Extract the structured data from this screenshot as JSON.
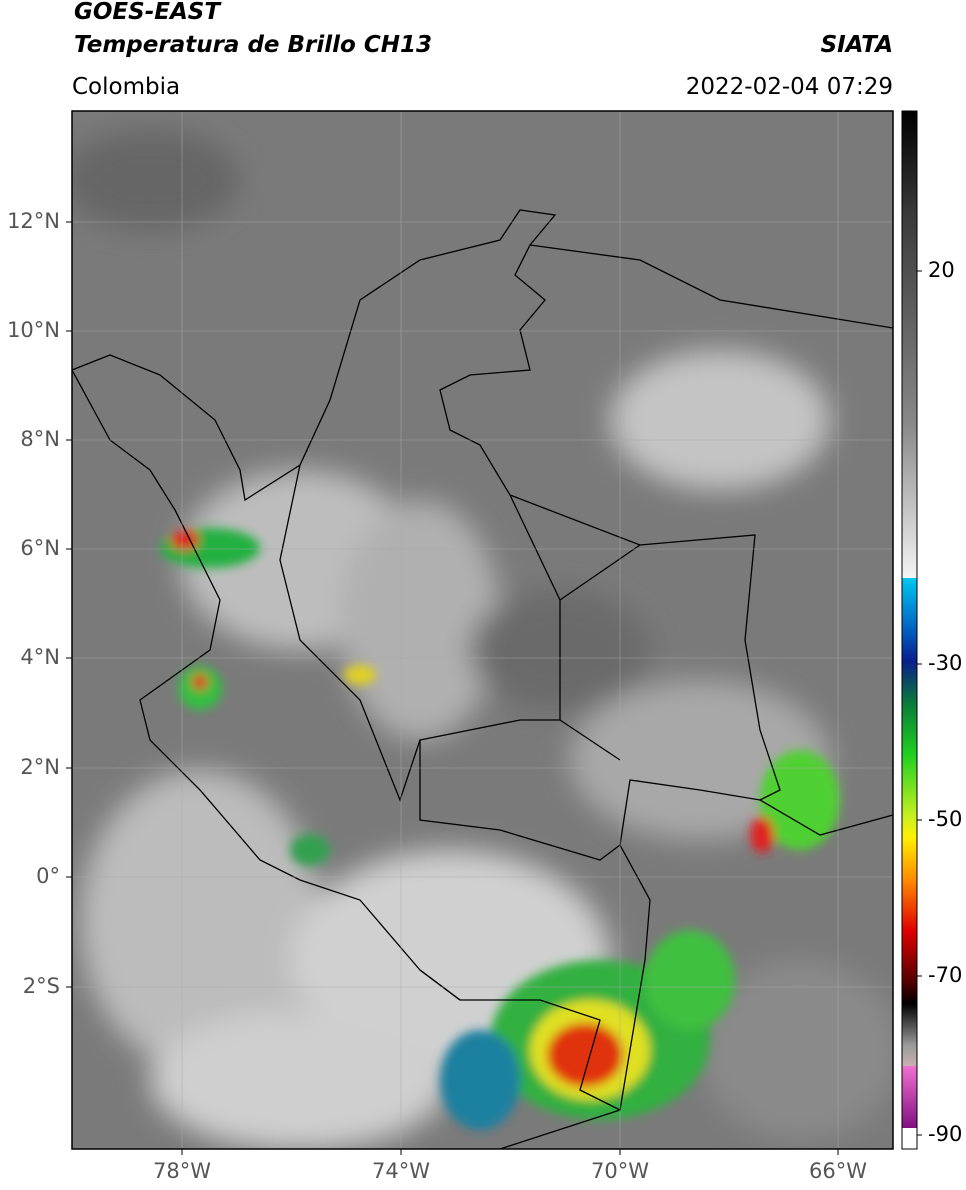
{
  "header": {
    "title_line1": "GOES-EAST",
    "title_line2": "Temperatura de Brillo CH13",
    "region": "Colombia",
    "source": "SIATA",
    "datetime": "2022-02-04 07:29"
  },
  "map": {
    "lat_ticks": [
      "12°N",
      "10°N",
      "8°N",
      "6°N",
      "4°N",
      "2°N",
      "0°",
      "2°S"
    ],
    "lon_ticks": [
      "78°W",
      "74°W",
      "70°W",
      "66°W"
    ]
  },
  "colorbar": {
    "ticks": [
      20,
      -30,
      -50,
      -70,
      -90
    ]
  }
}
